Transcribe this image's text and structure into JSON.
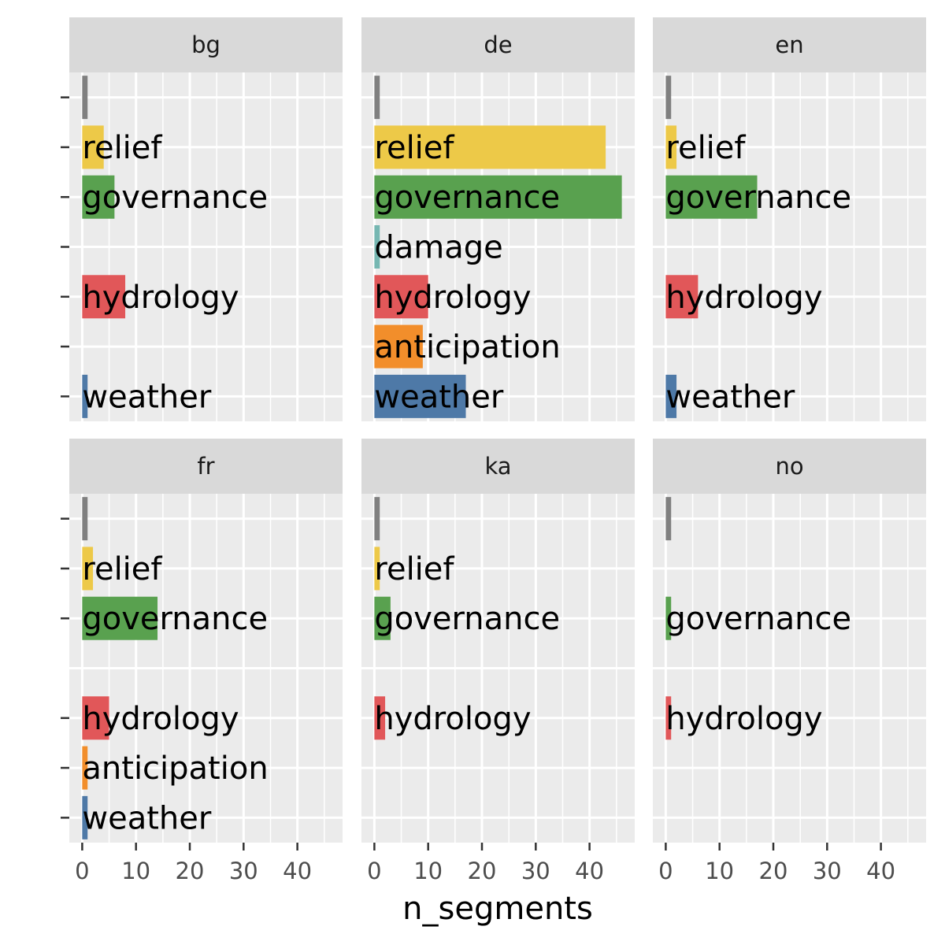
{
  "chart_data": {
    "type": "bar",
    "orientation": "horizontal",
    "xlabel": "n_segments",
    "ylabel": "",
    "xlim": [
      -2.4,
      48.4
    ],
    "x_ticks": [
      0,
      10,
      20,
      30,
      40
    ],
    "grid": true,
    "facet_layout": [
      2,
      3
    ],
    "categories": [
      "",
      "relief",
      "governance",
      "damage",
      "hydrology",
      "anticipation",
      "weather"
    ],
    "category_colors": {
      "": "#808080",
      "relief": "#EDC948",
      "governance": "#59A14F",
      "damage": "#76B7B2",
      "hydrology": "#E15759",
      "anticipation": "#F28E2B",
      "weather": "#4E79A7"
    },
    "panels": [
      {
        "label": "bg",
        "values": [
          1,
          4,
          6,
          null,
          8,
          null,
          1
        ]
      },
      {
        "label": "de",
        "values": [
          1,
          43,
          46,
          1,
          10,
          9,
          17
        ]
      },
      {
        "label": "en",
        "values": [
          1,
          2,
          17,
          null,
          6,
          null,
          2
        ]
      },
      {
        "label": "fr",
        "values": [
          1,
          2,
          14,
          null,
          5,
          1,
          1
        ]
      },
      {
        "label": "ka",
        "values": [
          1,
          1,
          3,
          null,
          2,
          null,
          null
        ]
      },
      {
        "label": "no",
        "values": [
          1,
          null,
          1,
          null,
          1,
          null,
          null
        ]
      }
    ]
  }
}
